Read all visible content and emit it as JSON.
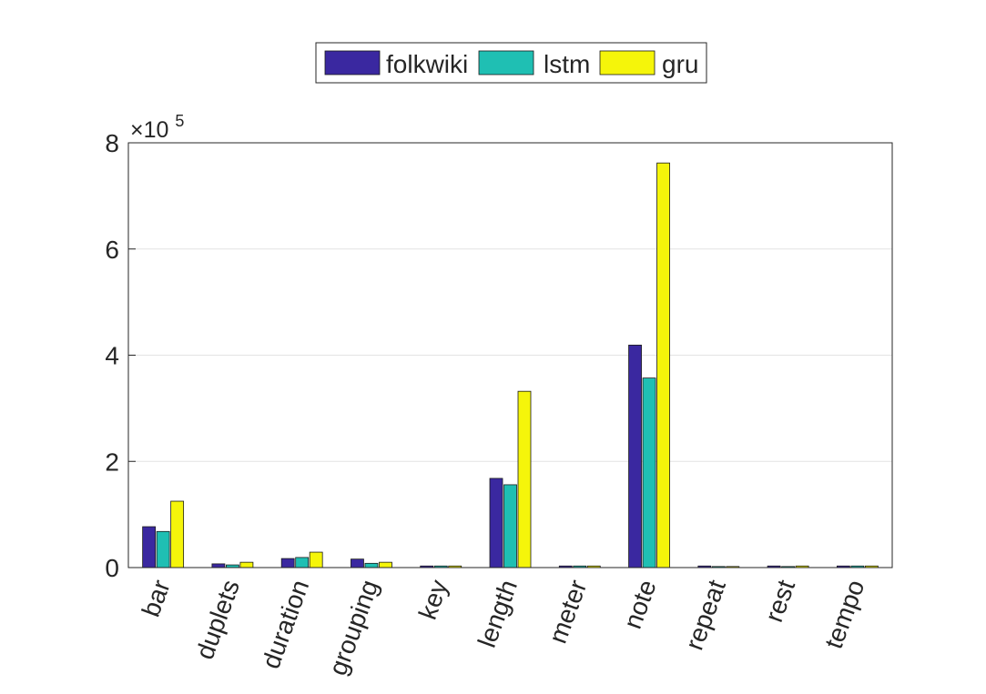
{
  "chart_data": {
    "type": "bar",
    "categories": [
      "bar",
      "duplets",
      "duration",
      "grouping",
      "key",
      "length",
      "meter",
      "note",
      "repeat",
      "rest",
      "tempo"
    ],
    "series": [
      {
        "name": "folkwiki",
        "color": "#3a28a0",
        "values": [
          77000,
          7000,
          17000,
          16000,
          3000,
          168000,
          3000,
          419000,
          3000,
          3000,
          3000
        ]
      },
      {
        "name": "lstm",
        "color": "#1fbfb3",
        "values": [
          68000,
          5000,
          19000,
          8000,
          3000,
          156000,
          3000,
          357000,
          2000,
          2000,
          3000
        ]
      },
      {
        "name": "gru",
        "color": "#f5f50a",
        "values": [
          125000,
          10000,
          29000,
          10000,
          3000,
          332000,
          3000,
          762000,
          2000,
          3000,
          3000
        ]
      }
    ],
    "ylim": [
      0,
      800000
    ],
    "yticks": [
      0,
      200000,
      400000,
      600000,
      800000
    ],
    "ytick_labels": [
      "0",
      "2",
      "4",
      "6",
      "8"
    ],
    "exponent_label": "×10",
    "exponent_power": "5",
    "grid": "y",
    "legend": "top-center",
    "xlabel": "",
    "ylabel": "",
    "title": ""
  }
}
